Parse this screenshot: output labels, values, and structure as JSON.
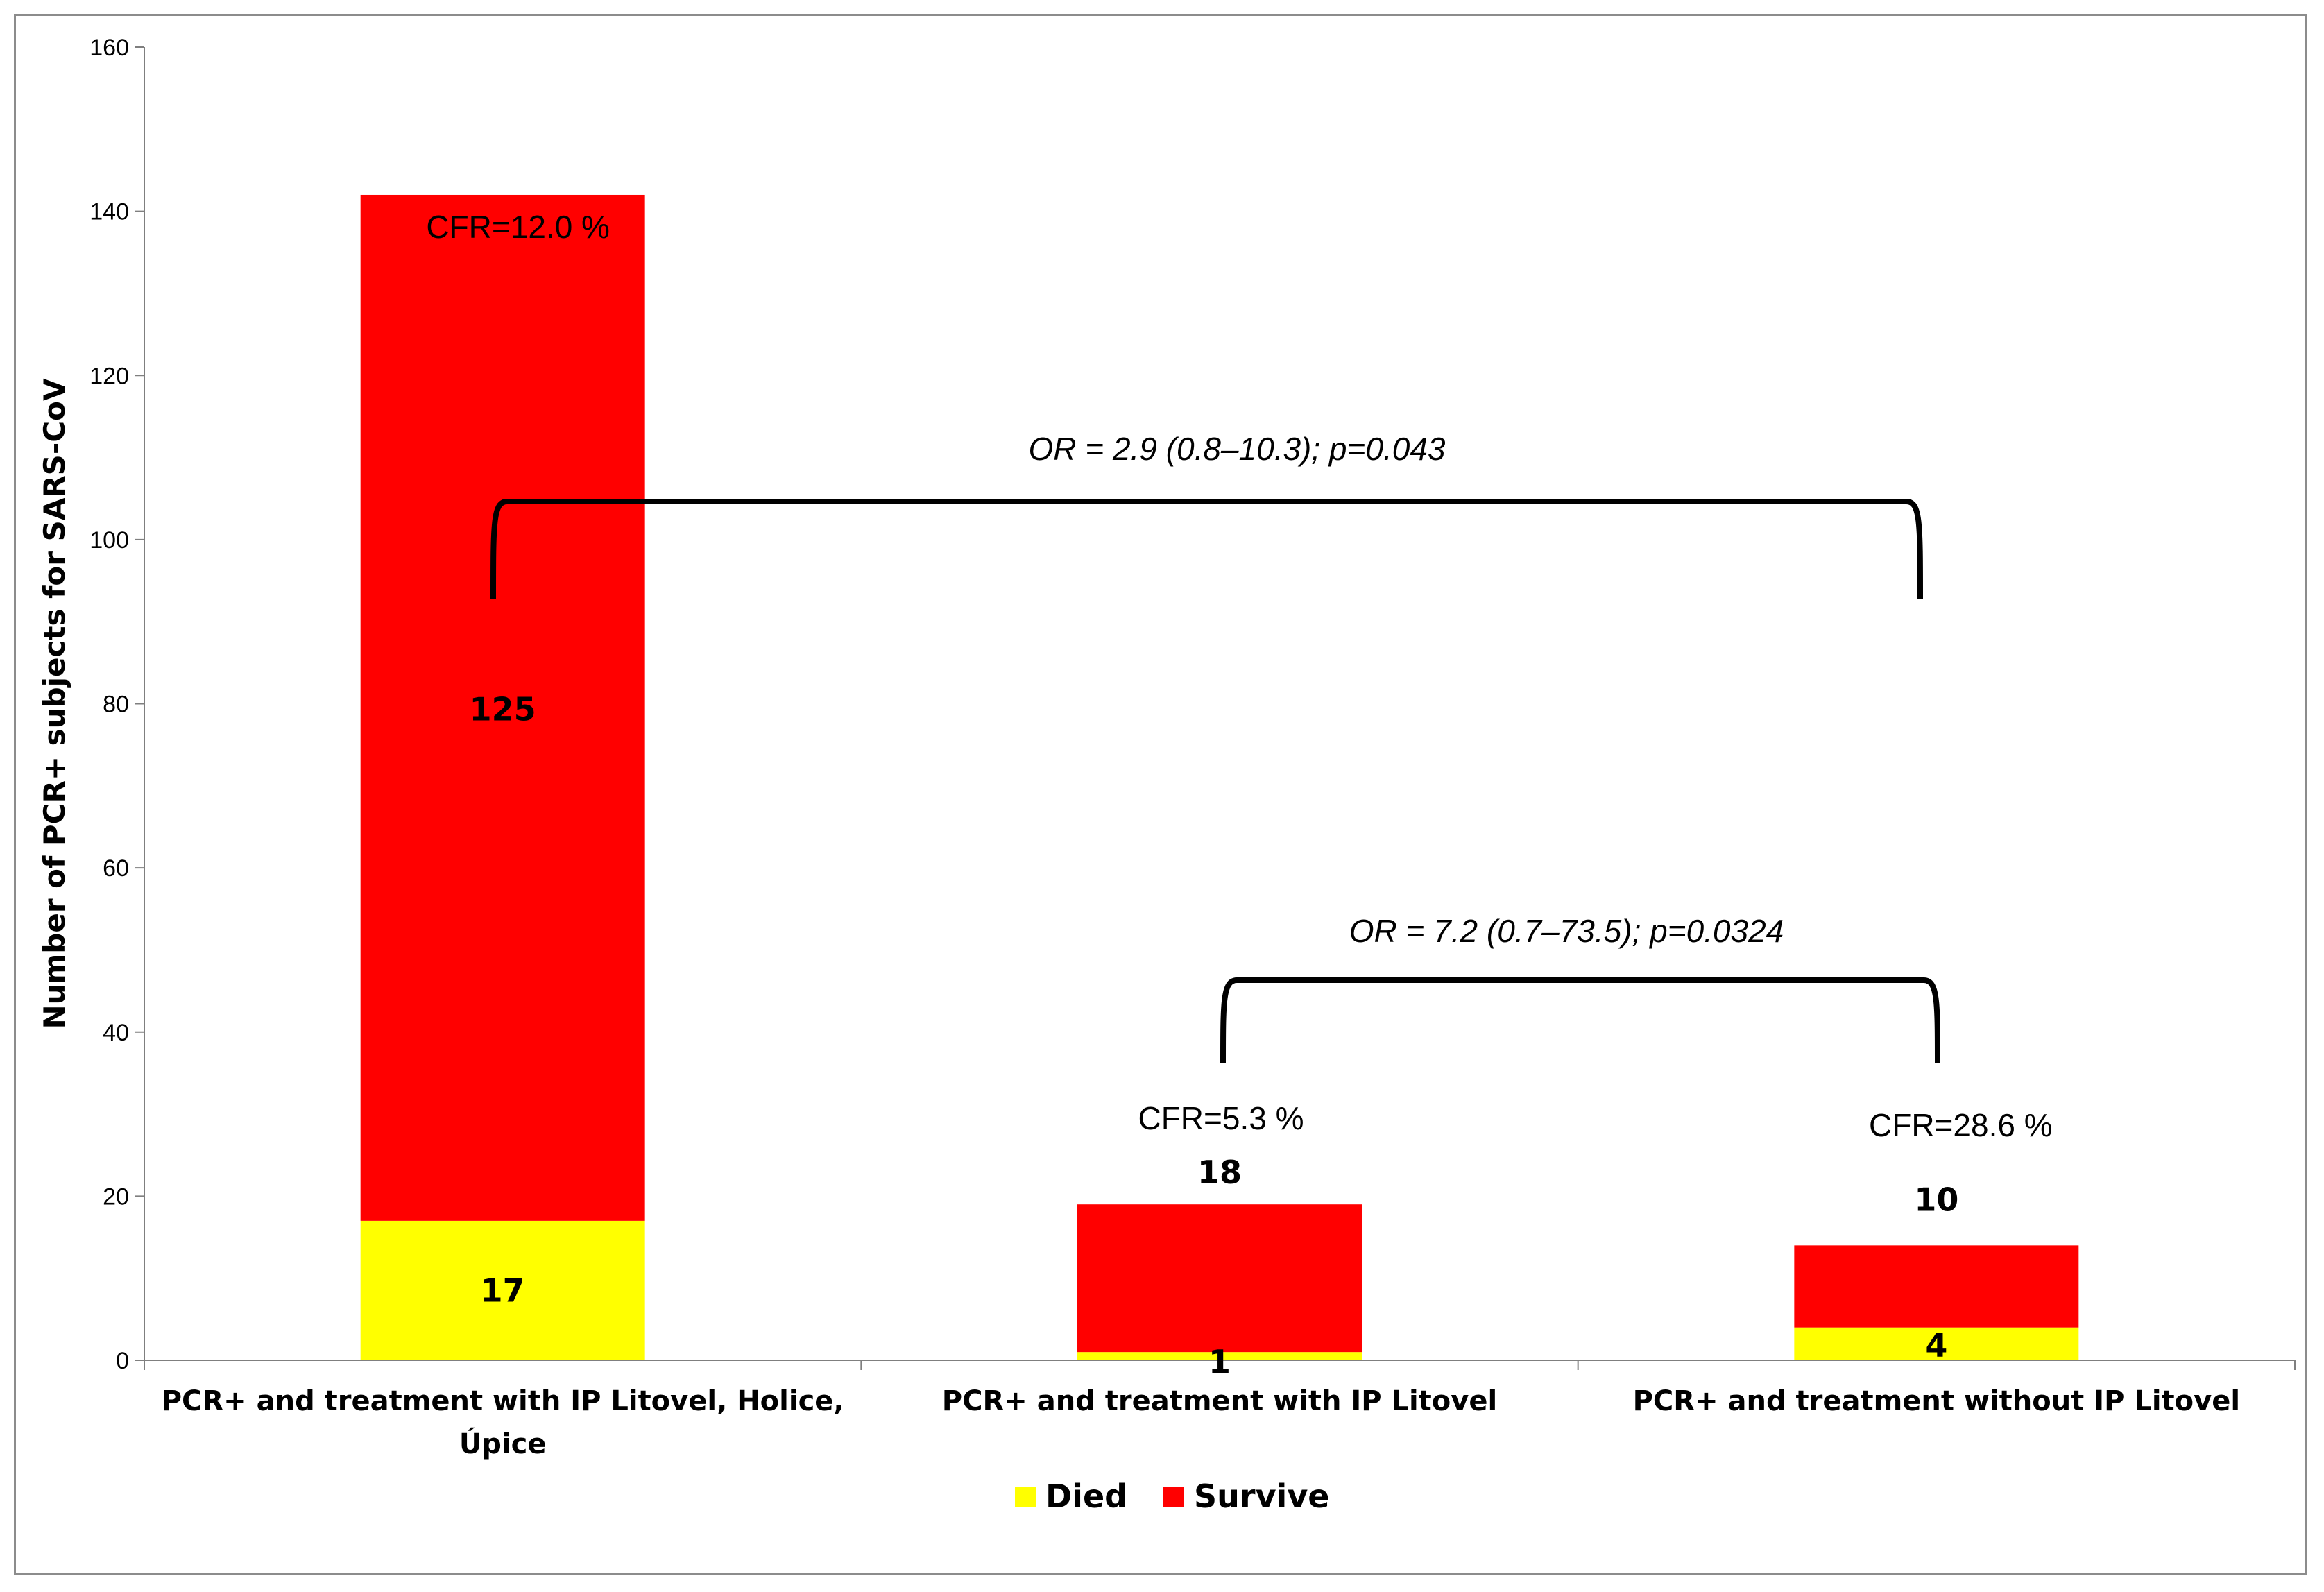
{
  "chart_data": {
    "type": "bar",
    "stacked": true,
    "ylabel": "Number of PCR+ subjects for SARS-CoV",
    "ylim": [
      0,
      160
    ],
    "yticks": [
      0,
      20,
      40,
      60,
      80,
      100,
      120,
      140,
      160
    ],
    "grid": false,
    "legend_position": "bottom",
    "categories": [
      [
        "PCR+ and treatment with IP Litovel, Holice,",
        "Úpice"
      ],
      [
        "PCR+ and treatment with IP Litovel"
      ],
      [
        "PCR+ and treatment without IP Litovel"
      ]
    ],
    "series": [
      {
        "name": "Died",
        "color": "#ffff00",
        "values": [
          17,
          1,
          4
        ]
      },
      {
        "name": "Survive",
        "color": "#ff0000",
        "values": [
          125,
          18,
          10
        ]
      }
    ],
    "annotations": {
      "cfr": [
        "CFR=12.0 %",
        "CFR=5.3 %",
        "CFR=28.6 %"
      ],
      "odds_ratios": [
        {
          "text": "OR = 2.9 (0.8–10.3); p=0.043",
          "between": [
            0,
            2
          ]
        },
        {
          "text": "OR = 7.2 (0.7–73.5); p=0.0324",
          "between": [
            1,
            2
          ]
        }
      ]
    }
  }
}
